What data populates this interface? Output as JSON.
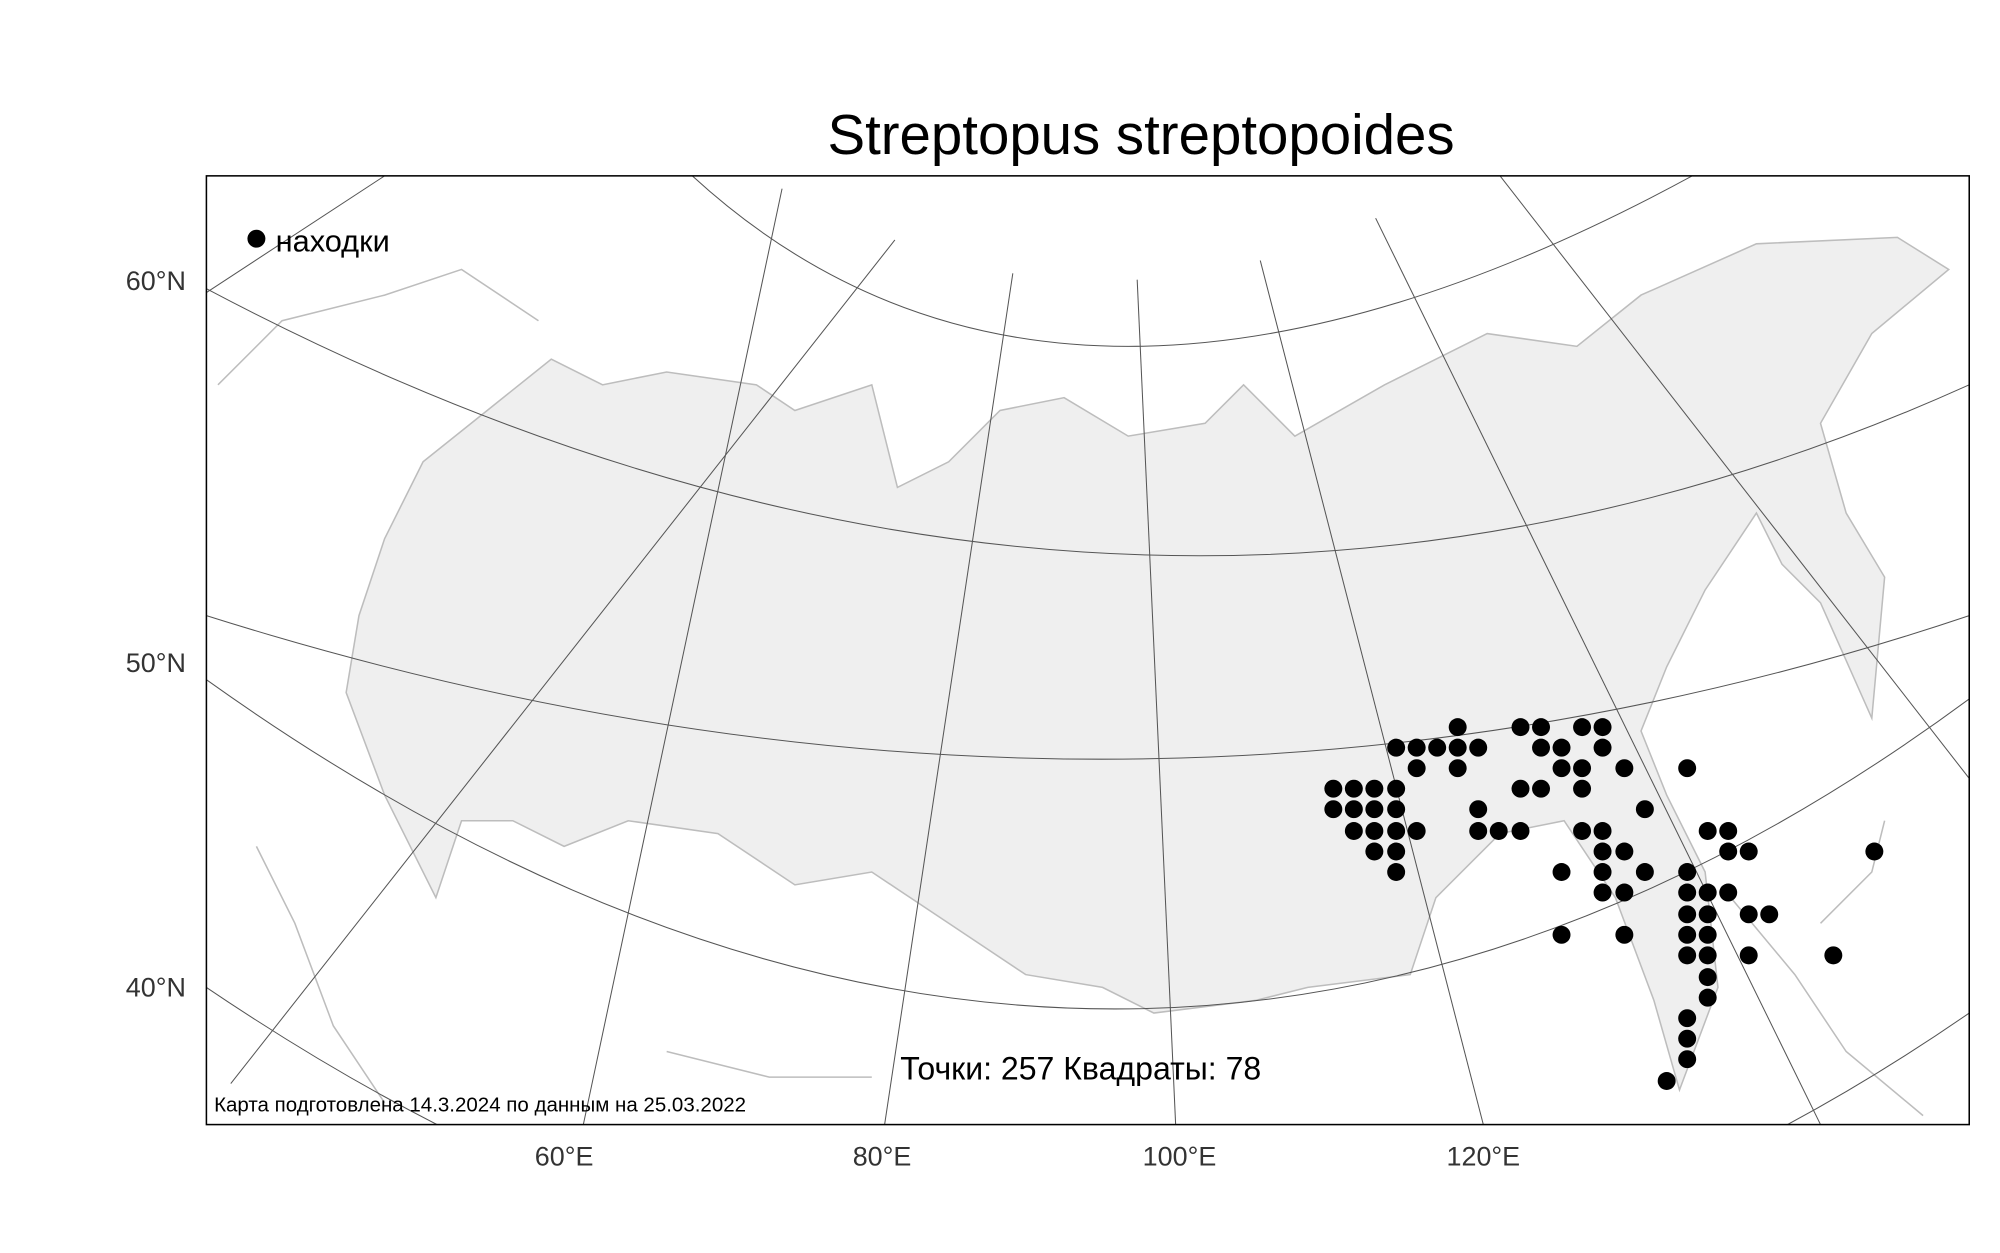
{
  "title": "Streptopus streptopoides",
  "legend": {
    "label": "находки"
  },
  "lat_labels": [
    "60°N",
    "50°N",
    "40°N"
  ],
  "lon_labels": [
    "60°E",
    "80°E",
    "100°E",
    "120°E"
  ],
  "stats": "Точки: 257 Квадраты: 78",
  "credit": "Карта подготовлена 14.3.2024 по данным на 25.03.2022"
}
